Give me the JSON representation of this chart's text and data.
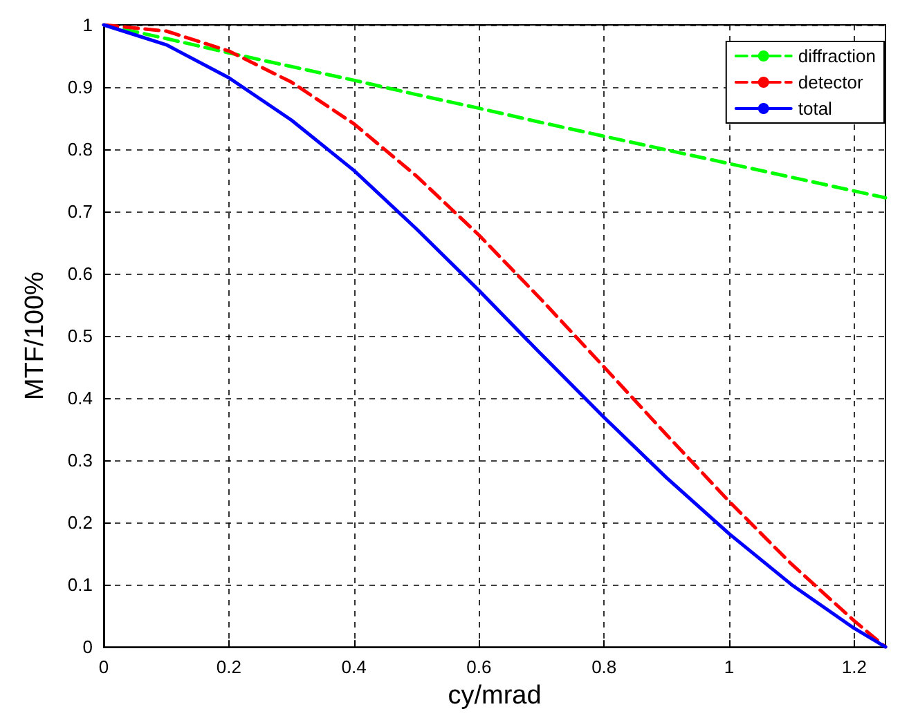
{
  "chart_data": {
    "type": "line",
    "xlabel": "cy/mrad",
    "ylabel": "MTF/100%",
    "x": [
      0,
      0.1,
      0.2,
      0.3,
      0.4,
      0.5,
      0.6,
      0.7,
      0.8,
      0.9,
      1.0,
      1.1,
      1.2,
      1.25
    ],
    "series": [
      {
        "name": "diffraction",
        "color": "#00ff00",
        "line_style": "dashed",
        "values": [
          1,
          0.978,
          0.955,
          0.933,
          0.911,
          0.888,
          0.866,
          0.843,
          0.821,
          0.799,
          0.777,
          0.755,
          0.733,
          0.722
        ]
      },
      {
        "name": "detector",
        "color": "#ff0000",
        "line_style": "dashed",
        "values": [
          1,
          0.99,
          0.958,
          0.908,
          0.841,
          0.757,
          0.662,
          0.558,
          0.45,
          0.341,
          0.234,
          0.133,
          0.042,
          0
        ]
      },
      {
        "name": "total",
        "color": "#0000ff",
        "line_style": "solid",
        "values": [
          1,
          0.968,
          0.915,
          0.847,
          0.766,
          0.672,
          0.573,
          0.47,
          0.369,
          0.272,
          0.182,
          0.1,
          0.03,
          0
        ]
      }
    ],
    "xlim": [
      0,
      1.25
    ],
    "xticks": [
      0,
      0.2,
      0.4,
      0.6,
      0.8,
      1,
      1.2
    ],
    "ylim": [
      0,
      1
    ],
    "yticks": [
      0,
      0.1,
      0.2,
      0.3,
      0.4,
      0.5,
      0.6,
      0.7,
      0.8,
      0.9,
      1
    ],
    "grid": true,
    "legend": "top right"
  }
}
